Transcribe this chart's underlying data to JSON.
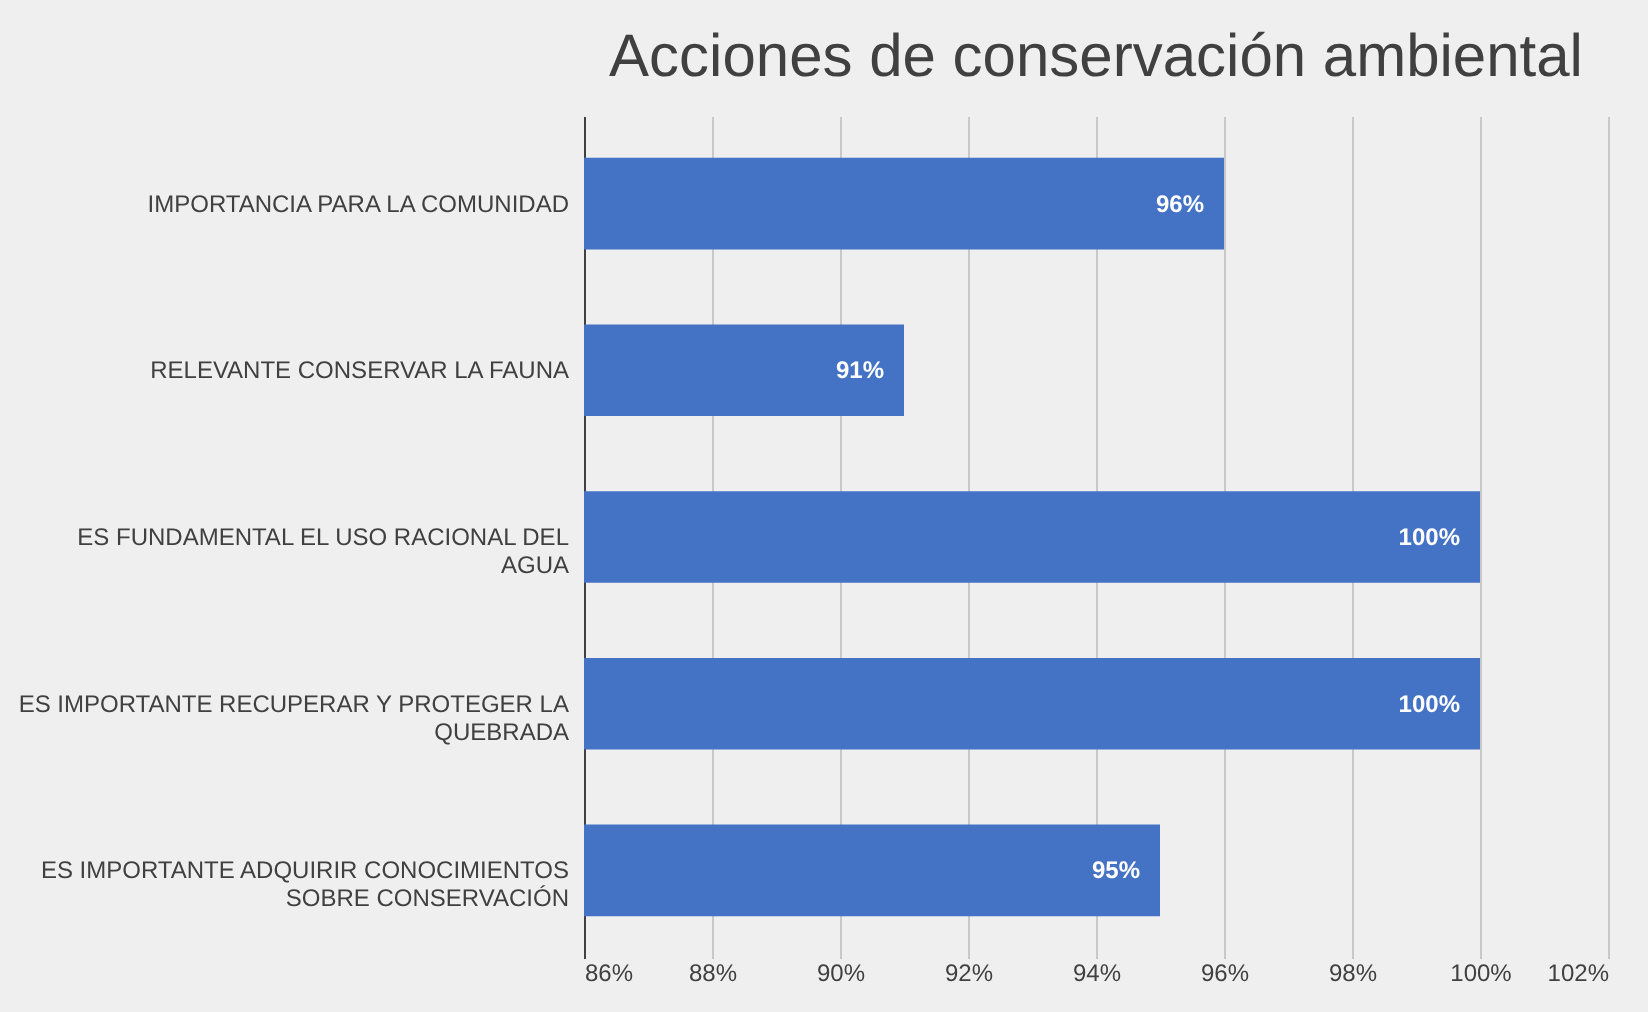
{
  "chart_data": {
    "type": "bar",
    "orientation": "horizontal",
    "title": "Acciones de conservación ambiental",
    "categories": [
      "IMPORTANCIA PARA LA COMUNIDAD",
      "RELEVANTE CONSERVAR LA FAUNA",
      "ES FUNDAMENTAL EL USO RACIONAL DEL AGUA",
      "ES IMPORTANTE RECUPERAR Y PROTEGER LA QUEBRADA",
      "ES IMPORTANTE ADQUIRIR CONOCIMIENTOS SOBRE CONSERVACIÓN"
    ],
    "values": [
      96,
      91,
      100,
      100,
      95
    ],
    "value_labels": [
      "96%",
      "91%",
      "100%",
      "100%",
      "95%"
    ],
    "color": "#4472c4",
    "xlim": [
      86,
      102
    ],
    "xticks": [
      {
        "value": 86,
        "label": "86%"
      },
      {
        "value": 88,
        "label": "88%"
      },
      {
        "value": 90,
        "label": "90%"
      },
      {
        "value": 92,
        "label": "92%"
      },
      {
        "value": 94,
        "label": "94%"
      },
      {
        "value": 96,
        "label": "96%"
      },
      {
        "value": 98,
        "label": "98%"
      },
      {
        "value": 100,
        "label": "100%"
      },
      {
        "value": 102,
        "label": "102%"
      }
    ],
    "grid": "x"
  }
}
